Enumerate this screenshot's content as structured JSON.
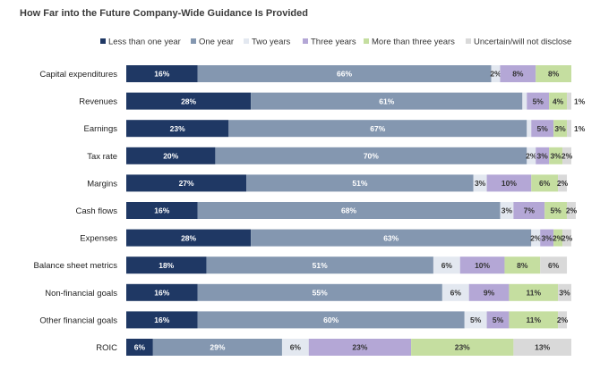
{
  "chart_data": {
    "type": "bar",
    "orientation": "horizontal",
    "stacked": true,
    "title": "How Far into the Future Company-Wide Guidance Is Provided",
    "categories": [
      "Capital expenditures",
      "Revenues",
      "Earnings",
      "Tax rate",
      "Margins",
      "Cash flows",
      "Expenses",
      "Balance sheet metrics",
      "Non-financial goals",
      "Other financial goals",
      "ROIC"
    ],
    "series": [
      {
        "name": "Less than one year",
        "color": "#1f3864",
        "values": [
          16,
          28,
          23,
          20,
          27,
          16,
          28,
          18,
          16,
          16,
          6
        ]
      },
      {
        "name": "One year",
        "color": "#8497b0",
        "values": [
          66,
          61,
          67,
          70,
          51,
          68,
          63,
          51,
          55,
          60,
          29
        ]
      },
      {
        "name": "Two years",
        "color": "#e3e8f0",
        "values": [
          2,
          1,
          1,
          2,
          3,
          3,
          2,
          6,
          6,
          5,
          6
        ]
      },
      {
        "name": "Three years",
        "color": "#b4a7d6",
        "values": [
          8,
          5,
          5,
          3,
          10,
          7,
          3,
          10,
          9,
          5,
          23
        ]
      },
      {
        "name": "More than three years",
        "color": "#c5dea0",
        "values": [
          8,
          4,
          3,
          3,
          6,
          5,
          2,
          8,
          11,
          11,
          23
        ]
      },
      {
        "name": "Uncertain/will not disclose",
        "color": "#d9d9d9",
        "values": [
          0,
          1,
          1,
          2,
          2,
          2,
          2,
          6,
          3,
          2,
          13
        ]
      }
    ],
    "value_suffix": "%",
    "legend_position": "top",
    "grid": false
  }
}
